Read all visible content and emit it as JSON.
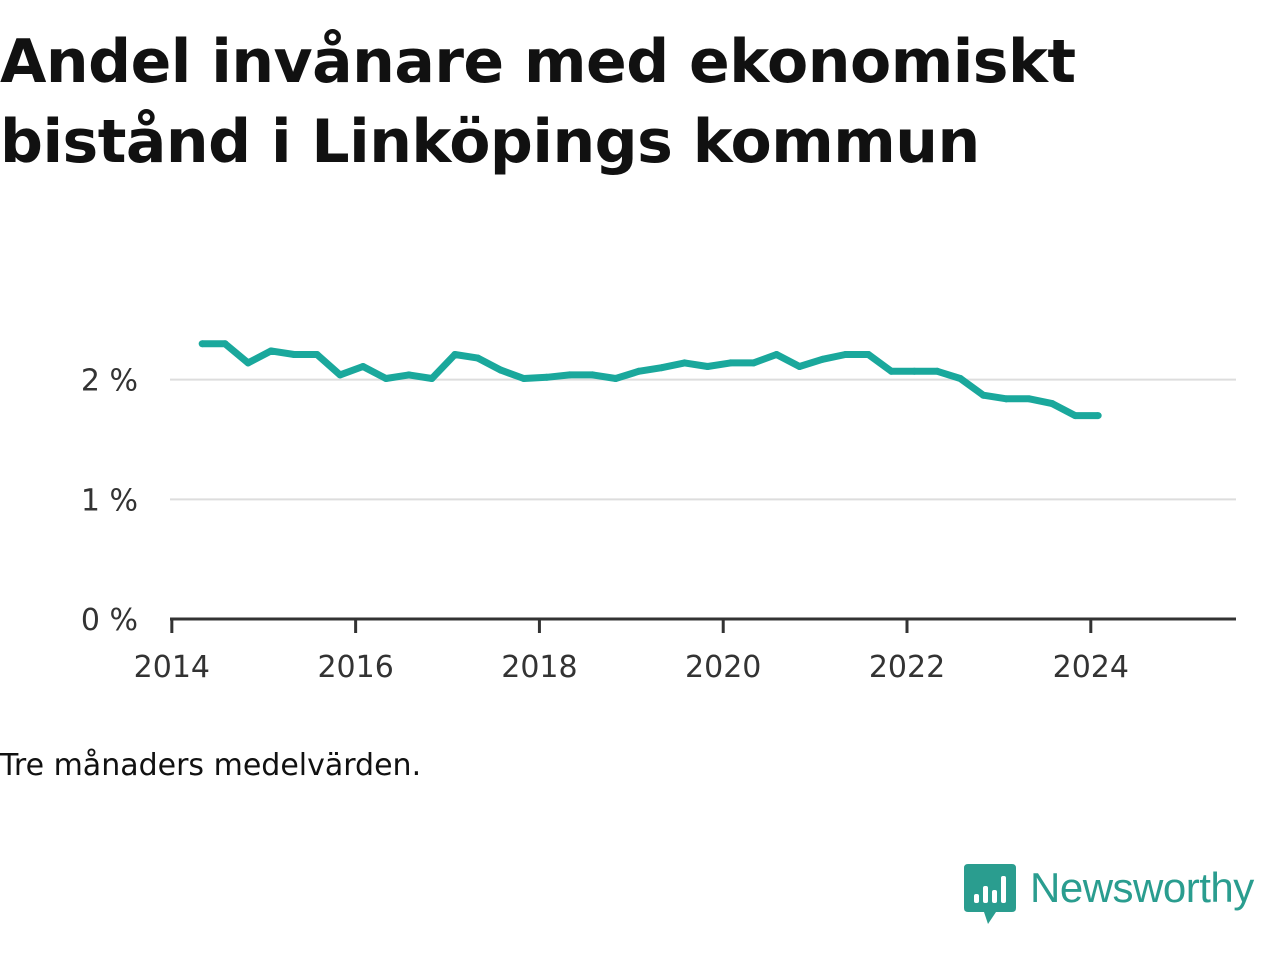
{
  "title": "Andel invånare med ekonomiskt\nbistånd i Linköpings kommun",
  "caption": "Tre månaders medelvärden.",
  "brand": {
    "name": "Newsworthy",
    "icon": "newsworthy-logo-icon"
  },
  "colors": {
    "line": "#1aa89c",
    "grid": "#dddddd",
    "axis": "#333333",
    "brand": "#2a9d8f"
  },
  "chart_data": {
    "type": "line",
    "title": "Andel invånare med ekonomiskt bistånd i Linköpings kommun",
    "xlabel": "",
    "ylabel": "",
    "xlim": [
      2013.98,
      2025.58
    ],
    "ylim": [
      0,
      3
    ],
    "x_ticks": [
      2014,
      2016,
      2018,
      2020,
      2022,
      2024
    ],
    "y_ticks": [
      {
        "value": 0,
        "label": "0 %"
      },
      {
        "value": 1,
        "label": "1 %"
      },
      {
        "value": 2,
        "label": "2 %"
      }
    ],
    "grid": true,
    "series": [
      {
        "name": "Andel invånare med ekonomiskt bistånd",
        "x": [
          2014.33,
          2014.58,
          2014.83,
          2015.08,
          2015.33,
          2015.58,
          2015.83,
          2016.08,
          2016.33,
          2016.58,
          2016.83,
          2017.08,
          2017.33,
          2017.58,
          2017.83,
          2018.08,
          2018.33,
          2018.58,
          2018.83,
          2019.08,
          2019.33,
          2019.58,
          2019.83,
          2020.08,
          2020.33,
          2020.58,
          2020.83,
          2021.08,
          2021.33,
          2021.58,
          2021.83,
          2022.08,
          2022.33,
          2022.58,
          2022.83,
          2023.08,
          2023.33,
          2023.58,
          2023.83,
          2024.08
        ],
        "values": [
          2.3,
          2.3,
          2.14,
          2.24,
          2.21,
          2.21,
          2.04,
          2.11,
          2.01,
          2.04,
          2.01,
          2.21,
          2.18,
          2.08,
          2.01,
          2.02,
          2.04,
          2.04,
          2.01,
          2.07,
          2.1,
          2.14,
          2.11,
          2.14,
          2.14,
          2.21,
          2.11,
          2.17,
          2.21,
          2.21,
          2.07,
          2.07,
          2.07,
          2.01,
          1.87,
          1.84,
          1.84,
          1.8,
          1.7,
          1.7
        ]
      }
    ]
  }
}
